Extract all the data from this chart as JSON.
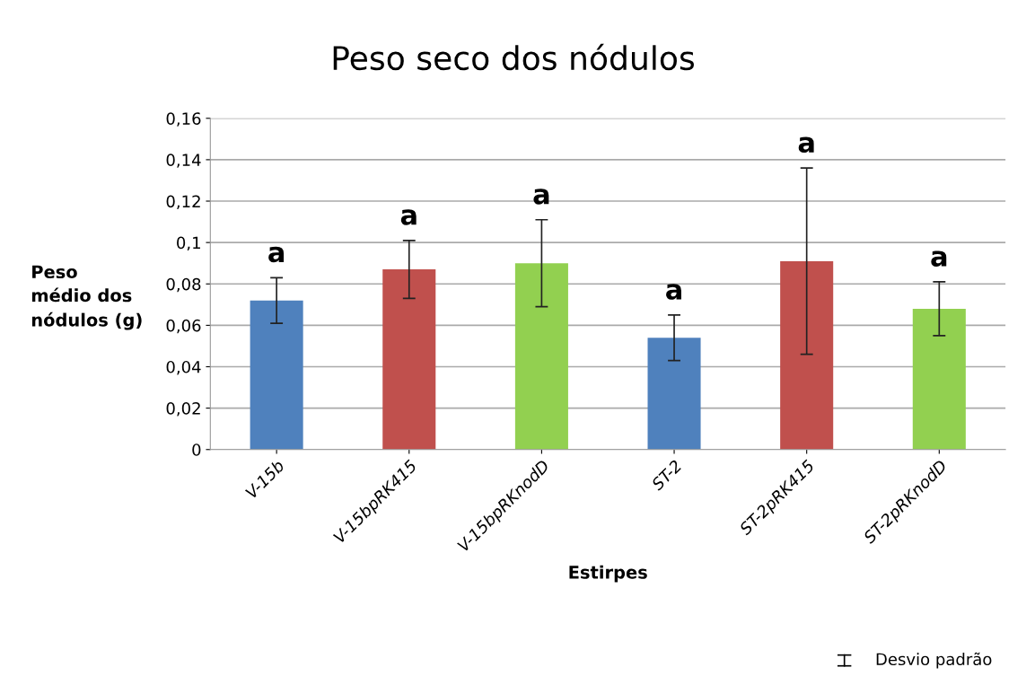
{
  "chart_data": {
    "type": "bar",
    "title": "Peso seco dos nódulos",
    "xlabel": "Estirpes",
    "ylabel": "Peso\nmédio dos\nnódulos (g)",
    "categories": [
      "V-15b",
      "V-15bpRK415",
      "V-15bpRKnodD",
      "ST-2",
      "ST-2pRK415",
      "ST-2pRKnodD"
    ],
    "values": [
      0.072,
      0.087,
      0.09,
      0.054,
      0.091,
      0.068
    ],
    "errors": [
      0.011,
      0.014,
      0.021,
      0.011,
      0.045,
      0.013
    ],
    "colors": [
      "#4f81bd",
      "#c0504d",
      "#92d050",
      "#4f81bd",
      "#c0504d",
      "#92d050"
    ],
    "ylim": [
      0,
      0.16
    ],
    "yticks": [
      0,
      {
        "value": 0.02,
        "label": "0,02"
      },
      {
        "value": 0.04,
        "label": "0,04"
      },
      {
        "value": 0.06,
        "label": "0,06"
      },
      {
        "value": 0.08,
        "label": "0,08"
      },
      {
        "value": 0.1,
        "label": "0,1"
      },
      {
        "value": 0.12,
        "label": "0,12"
      },
      {
        "value": 0.14,
        "label": "0,14"
      },
      {
        "value": 0.16,
        "label": "0,16"
      }
    ],
    "grid": "y",
    "annotations": [
      "a",
      "a",
      "a",
      "a",
      "a",
      "a",
      "Desvio padrão"
    ]
  }
}
